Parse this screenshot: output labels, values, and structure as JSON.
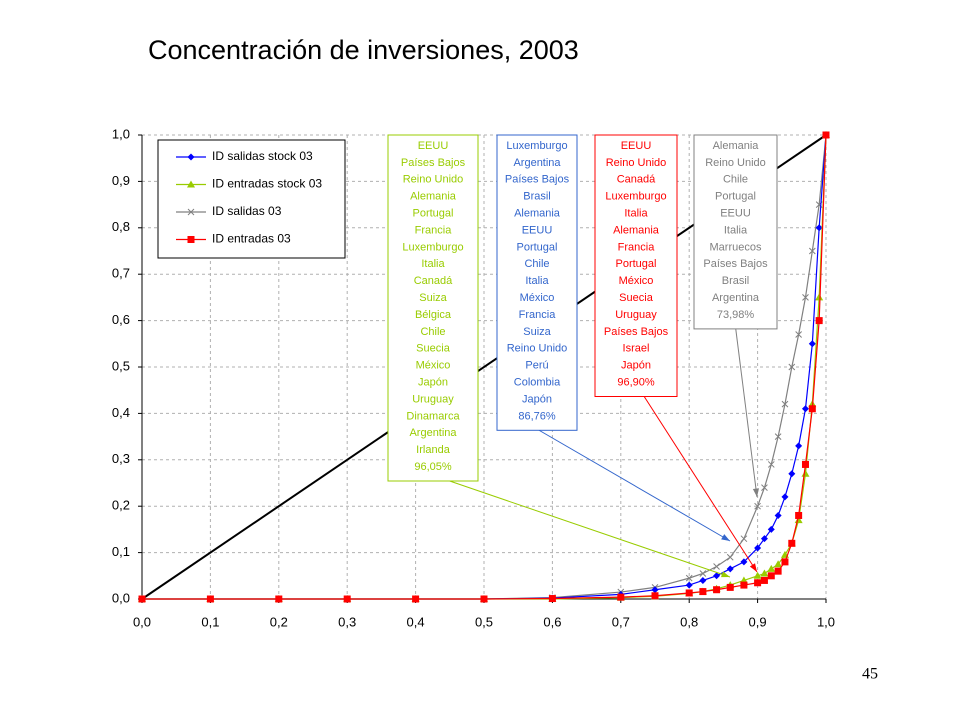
{
  "chart_data": {
    "type": "line",
    "title": "Concentración de inversiones, 2003",
    "page_number": "45",
    "x": [
      0,
      0.1,
      0.2,
      0.3,
      0.4,
      0.5,
      0.6,
      0.7,
      0.75,
      0.8,
      0.82,
      0.84,
      0.86,
      0.88,
      0.9,
      0.91,
      0.92,
      0.93,
      0.94,
      0.95,
      0.96,
      0.97,
      0.98,
      0.99,
      1.0
    ],
    "series": [
      {
        "name": "ID salidas stock 03",
        "color": "#0000ff",
        "marker": "diamond",
        "values": [
          0,
          0,
          0,
          0,
          0,
          0,
          0.002,
          0.01,
          0.02,
          0.03,
          0.04,
          0.05,
          0.065,
          0.08,
          0.11,
          0.13,
          0.15,
          0.18,
          0.22,
          0.27,
          0.33,
          0.41,
          0.55,
          0.8,
          1.0
        ]
      },
      {
        "name": "ID entradas stock 03",
        "color": "#99cc00",
        "marker": "triangle",
        "values": [
          0,
          0,
          0,
          0,
          0,
          0,
          0,
          0.003,
          0.006,
          0.012,
          0.016,
          0.022,
          0.03,
          0.04,
          0.05,
          0.055,
          0.065,
          0.075,
          0.095,
          0.12,
          0.17,
          0.27,
          0.42,
          0.65,
          1.0
        ]
      },
      {
        "name": "ID salidas 03",
        "color": "#808080",
        "marker": "cross",
        "values": [
          0,
          0,
          0,
          0,
          0,
          0,
          0.003,
          0.015,
          0.025,
          0.045,
          0.055,
          0.07,
          0.09,
          0.13,
          0.2,
          0.24,
          0.29,
          0.35,
          0.42,
          0.5,
          0.57,
          0.65,
          0.75,
          0.85,
          1.0
        ]
      },
      {
        "name": "ID entradas 03",
        "color": "#ff0000",
        "marker": "square",
        "values": [
          0,
          0,
          0,
          0,
          0,
          0,
          0.001,
          0.004,
          0.007,
          0.013,
          0.016,
          0.02,
          0.025,
          0.03,
          0.035,
          0.04,
          0.05,
          0.06,
          0.08,
          0.12,
          0.18,
          0.29,
          0.41,
          0.6,
          1.0
        ]
      }
    ],
    "reference_line": {
      "x": [
        0,
        1
      ],
      "values": [
        0,
        1
      ],
      "color": "#000000"
    },
    "xlim": [
      0,
      1
    ],
    "ylim": [
      0,
      1
    ],
    "xticks": [
      {
        "value": 0,
        "label": "0,0"
      },
      {
        "value": 0.1,
        "label": "0,1"
      },
      {
        "value": 0.2,
        "label": "0,2"
      },
      {
        "value": 0.3,
        "label": "0,3"
      },
      {
        "value": 0.4,
        "label": "0,4"
      },
      {
        "value": 0.5,
        "label": "0,5"
      },
      {
        "value": 0.6,
        "label": "0,6"
      },
      {
        "value": 0.7,
        "label": "0,7"
      },
      {
        "value": 0.8,
        "label": "0,8"
      },
      {
        "value": 0.9,
        "label": "0,9"
      },
      {
        "value": 1,
        "label": "1,0"
      }
    ],
    "yticks": [
      {
        "value": 0,
        "label": "0,0"
      },
      {
        "value": 0.1,
        "label": "0,1"
      },
      {
        "value": 0.2,
        "label": "0,2"
      },
      {
        "value": 0.3,
        "label": "0,3"
      },
      {
        "value": 0.4,
        "label": "0,4"
      },
      {
        "value": 0.5,
        "label": "0,5"
      },
      {
        "value": 0.6,
        "label": "0,6"
      },
      {
        "value": 0.7,
        "label": "0,7"
      },
      {
        "value": 0.8,
        "label": "0,8"
      },
      {
        "value": 0.9,
        "label": "0,9"
      },
      {
        "value": 1,
        "label": "1,0"
      }
    ],
    "grid": true,
    "legend": "top-left",
    "annotations": [
      {
        "color": "#99cc00",
        "lines": [
          "EEUU",
          "Países Bajos",
          "Reino Unido",
          "Alemania",
          "Portugal",
          "Francia",
          "Luxemburgo",
          "Italia",
          "Canadá",
          "Suiza",
          "Bélgica",
          "Chile",
          "Suecia",
          "México",
          "Japón",
          "Uruguay",
          "Dinamarca",
          "Argentina",
          "Irlanda",
          "96,05%"
        ]
      },
      {
        "color": "#3366cc",
        "lines": [
          "Luxemburgo",
          "Argentina",
          "Países Bajos",
          "Brasil",
          "Alemania",
          "EEUU",
          "Portugal",
          "Chile",
          "Italia",
          "México",
          "Francia",
          "Suiza",
          "Reino Unido",
          "Perú",
          "Colombia",
          "Japón",
          "86,76%"
        ]
      },
      {
        "color": "#ff0000",
        "lines": [
          "EEUU",
          "Reino Unido",
          "Canadá",
          "Luxemburgo",
          "Italia",
          "Alemania",
          "Francia",
          "Portugal",
          "México",
          "Suecia",
          "Uruguay",
          "Países Bajos",
          "Israel",
          "Japón",
          "96,90%"
        ]
      },
      {
        "color": "#808080",
        "lines": [
          "Alemania",
          "Reino Unido",
          "Chile",
          "Portugal",
          "EEUU",
          "Italia",
          "Marruecos",
          "Países Bajos",
          "Brasil",
          "Argentina",
          "73,98%"
        ]
      }
    ]
  }
}
